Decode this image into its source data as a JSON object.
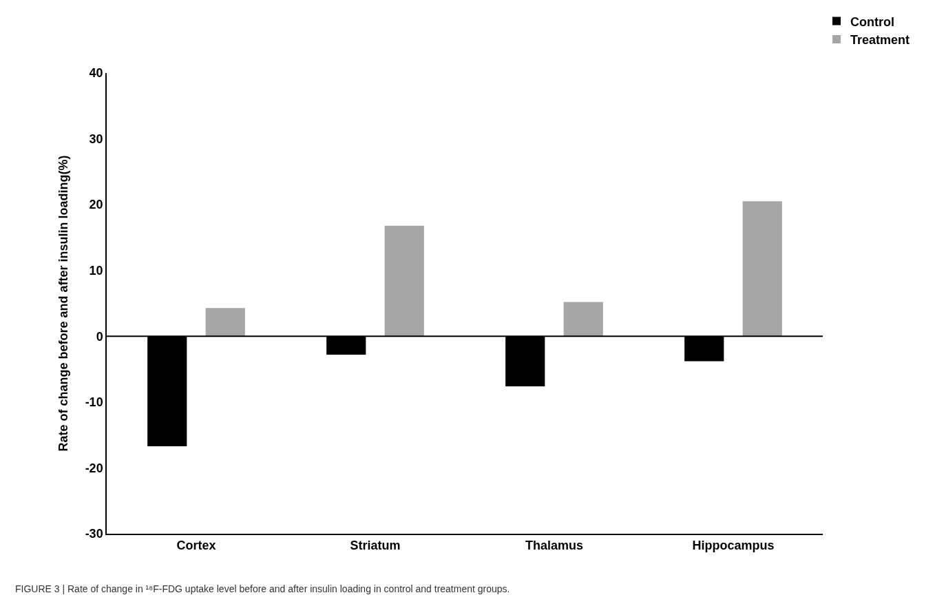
{
  "chart_data": {
    "type": "bar",
    "ylabel": "Rate of change before and after insulin loading(%)",
    "categories": [
      "Cortex",
      "Striatum",
      "Thalamus",
      "Hippocampus"
    ],
    "series": [
      {
        "name": "Control",
        "color": "#000000",
        "values": [
          -16.7,
          -2.8,
          -7.6,
          -3.8
        ]
      },
      {
        "name": "Treatment",
        "color": "#a6a6a6",
        "values": [
          4.3,
          16.8,
          5.2,
          20.5
        ]
      }
    ],
    "ylim": [
      -30,
      40
    ],
    "yticks": [
      -30,
      -20,
      -10,
      0,
      10,
      20,
      30,
      40
    ],
    "grid": false,
    "ref_lines": [
      {
        "axis": "y",
        "value": 0,
        "color": "#000000"
      }
    ],
    "legend": "top right",
    "annotations": [
      "FIGURE 3 | Rate of change in ¹⁸F-FDG uptake level before and after insulin loading in control and treatment groups."
    ]
  }
}
